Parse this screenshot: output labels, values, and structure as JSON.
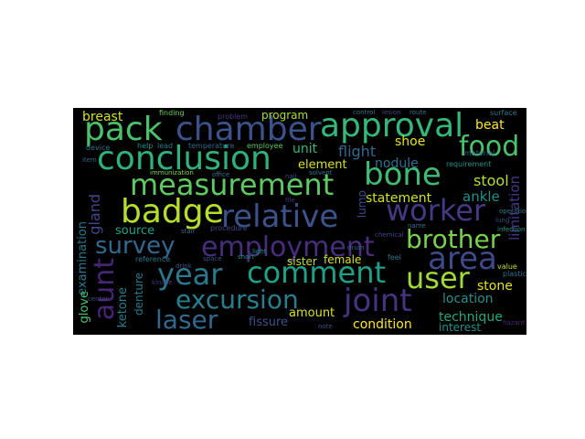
{
  "background": "#000000",
  "words": [
    {
      "text": "pack",
      "color": "#4ac16d"
    },
    {
      "text": "chamber",
      "color": "#3b528b"
    },
    {
      "text": "approval",
      "color": "#35b779"
    },
    {
      "text": "food",
      "color": "#4ac16d"
    },
    {
      "text": "conclusion",
      "color": "#2db27d"
    },
    {
      "text": "bone",
      "color": "#3fbc73"
    },
    {
      "text": "measurement",
      "color": "#5ec962"
    },
    {
      "text": "badge",
      "color": "#b5de2b"
    },
    {
      "text": "relative",
      "color": "#3b528b"
    },
    {
      "text": "worker",
      "color": "#443983"
    },
    {
      "text": "survey",
      "color": "#31688e"
    },
    {
      "text": "employment",
      "color": "#472d7b"
    },
    {
      "text": "brother",
      "color": "#7ad151"
    },
    {
      "text": "area",
      "color": "#3e4989"
    },
    {
      "text": "year",
      "color": "#2a788e"
    },
    {
      "text": "comment",
      "color": "#1fa187"
    },
    {
      "text": "user",
      "color": "#a0da39"
    },
    {
      "text": "aunt",
      "color": "#482475"
    },
    {
      "text": "excursion",
      "color": "#277f8e"
    },
    {
      "text": "joint",
      "color": "#46327e"
    },
    {
      "text": "laser",
      "color": "#31688e"
    },
    {
      "text": "breast",
      "color": "#d2e21b"
    },
    {
      "text": "beat",
      "color": "#fde725"
    },
    {
      "text": "flight",
      "color": "#31688e"
    },
    {
      "text": "shoe",
      "color": "#e5e419"
    },
    {
      "text": "unit",
      "color": "#35b779"
    },
    {
      "text": "element",
      "color": "#d8e219"
    },
    {
      "text": "nodule",
      "color": "#2c728e"
    },
    {
      "text": "stool",
      "color": "#b5de2b"
    },
    {
      "text": "statement",
      "color": "#d2e21b"
    },
    {
      "text": "ankle",
      "color": "#21918c"
    },
    {
      "text": "limitation",
      "color": "#443983"
    },
    {
      "text": "lump",
      "color": "#3e4989"
    },
    {
      "text": "gland",
      "color": "#404688"
    },
    {
      "text": "source",
      "color": "#1fa187"
    },
    {
      "text": "examination",
      "color": "#2a788e"
    },
    {
      "text": "sister",
      "color": "#bddf26"
    },
    {
      "text": "female",
      "color": "#d8e219"
    },
    {
      "text": "stone",
      "color": "#e5e419"
    },
    {
      "text": "location",
      "color": "#21918c"
    },
    {
      "text": "glove",
      "color": "#4ac16d"
    },
    {
      "text": "ketone",
      "color": "#277f8e"
    },
    {
      "text": "denture",
      "color": "#2a788e"
    },
    {
      "text": "amount",
      "color": "#d8e219"
    },
    {
      "text": "fissure",
      "color": "#3b528b"
    },
    {
      "text": "condition",
      "color": "#fde725"
    },
    {
      "text": "technique",
      "color": "#22a884"
    },
    {
      "text": "interest",
      "color": "#21918c"
    },
    {
      "text": "program",
      "color": "#addc30"
    },
    {
      "text": "finding",
      "color": "#6ccd5a"
    },
    {
      "text": "problem",
      "color": "#443983"
    },
    {
      "text": "device",
      "color": "#2c728e"
    },
    {
      "text": "help",
      "color": "#21918c"
    },
    {
      "text": "lead",
      "color": "#2a788e"
    },
    {
      "text": "temperature",
      "color": "#31688e"
    },
    {
      "text": "employee",
      "color": "#5ec962"
    },
    {
      "text": "immunization",
      "color": "#84d44b"
    },
    {
      "text": "item",
      "color": "#31688e"
    },
    {
      "text": "surface",
      "color": "#2a788e"
    },
    {
      "text": "material",
      "color": "#31688e"
    },
    {
      "text": "requirement",
      "color": "#21918c"
    },
    {
      "text": "lesion",
      "color": "#3e4989"
    },
    {
      "text": "route",
      "color": "#2c728e"
    },
    {
      "text": "control",
      "color": "#2c728e"
    },
    {
      "text": "reference",
      "color": "#2a788e"
    },
    {
      "text": "space",
      "color": "#3b528b"
    },
    {
      "text": "stair",
      "color": "#31688e"
    },
    {
      "text": "procedure",
      "color": "#3e4989"
    },
    {
      "text": "plastic",
      "color": "#2c728e"
    },
    {
      "text": "value",
      "color": "#bddf26"
    },
    {
      "text": "feel",
      "color": "#2a788e"
    },
    {
      "text": "lung",
      "color": "#3e4989"
    },
    {
      "text": "infection",
      "color": "#21918c"
    },
    {
      "text": "file",
      "color": "#443983"
    },
    {
      "text": "office",
      "color": "#2c728e"
    },
    {
      "text": "solvent",
      "color": "#2a788e"
    },
    {
      "text": "drink",
      "color": "#3b528b"
    },
    {
      "text": "hazard",
      "color": "#482475"
    },
    {
      "text": "chemical",
      "color": "#3e4989"
    },
    {
      "text": "short",
      "color": "#21918c"
    },
    {
      "text": "name",
      "color": "#2c728e"
    },
    {
      "text": "drum",
      "color": "#31688e"
    },
    {
      "text": "note",
      "color": "#3b528b"
    },
    {
      "text": "operation",
      "color": "#2a788e"
    },
    {
      "text": "center",
      "color": "#404688"
    },
    {
      "text": "light",
      "color": "#21918c"
    },
    {
      "text": "kinase",
      "color": "#443983"
    },
    {
      "text": "nail",
      "color": "#3e4989"
    }
  ]
}
